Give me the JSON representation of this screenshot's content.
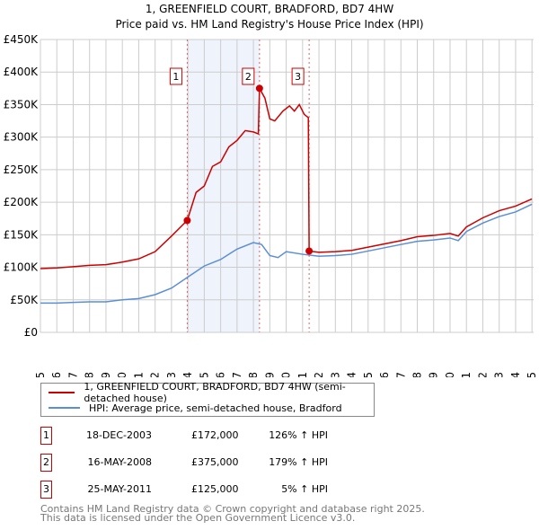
{
  "chart_data": {
    "type": "line",
    "title": "1, GREENFIELD COURT, BRADFORD, BD7 4HW",
    "subtitle": "Price paid vs. HM Land Registry's House Price Index (HPI)",
    "xlim": [
      1995,
      2025.1
    ],
    "ylim": [
      0,
      450000
    ],
    "yticks": [
      0,
      50000,
      100000,
      150000,
      200000,
      250000,
      300000,
      350000,
      400000,
      450000
    ],
    "ytick_labels": [
      "£0",
      "£50K",
      "£100K",
      "£150K",
      "£200K",
      "£250K",
      "£300K",
      "£350K",
      "£400K",
      "£450K"
    ],
    "xticks": [
      "1995",
      "1996",
      "1997",
      "1998",
      "1999",
      "2000",
      "2001",
      "2002",
      "2003",
      "2004",
      "2005",
      "2006",
      "2007",
      "2008",
      "2009",
      "2010",
      "2011",
      "2012",
      "2013",
      "2014",
      "2015",
      "2016",
      "2017",
      "2018",
      "2019",
      "2020",
      "2021",
      "2022",
      "2023",
      "2024",
      "2025"
    ],
    "grid": true,
    "series": [
      {
        "name": "1, GREENFIELD COURT, BRADFORD, BD7 4HW (semi-detached house)",
        "color": "#cc0000",
        "points": [
          [
            1995,
            98000
          ],
          [
            1996,
            99000
          ],
          [
            1997,
            101000
          ],
          [
            1998,
            103000
          ],
          [
            1999,
            104000
          ],
          [
            2000,
            108000
          ],
          [
            2001,
            113000
          ],
          [
            2002,
            124000
          ],
          [
            2003,
            148000
          ],
          [
            2003.96,
            172000
          ],
          [
            2004.5,
            215000
          ],
          [
            2005,
            225000
          ],
          [
            2005.5,
            255000
          ],
          [
            2006,
            262000
          ],
          [
            2006.5,
            285000
          ],
          [
            2007,
            295000
          ],
          [
            2007.5,
            310000
          ],
          [
            2008,
            308000
          ],
          [
            2008.3,
            305000
          ],
          [
            2008.37,
            375000
          ],
          [
            2008.7,
            360000
          ],
          [
            2009,
            328000
          ],
          [
            2009.3,
            325000
          ],
          [
            2009.8,
            340000
          ],
          [
            2010.2,
            348000
          ],
          [
            2010.5,
            340000
          ],
          [
            2010.8,
            350000
          ],
          [
            2011.1,
            335000
          ],
          [
            2011.35,
            330000
          ],
          [
            2011.4,
            125000
          ],
          [
            2012,
            123000
          ],
          [
            2013,
            124000
          ],
          [
            2014,
            126000
          ],
          [
            2015,
            131000
          ],
          [
            2016,
            136000
          ],
          [
            2017,
            141000
          ],
          [
            2018,
            147000
          ],
          [
            2019,
            149000
          ],
          [
            2020,
            152000
          ],
          [
            2020.5,
            148000
          ],
          [
            2021,
            162000
          ],
          [
            2022,
            176000
          ],
          [
            2023,
            187000
          ],
          [
            2024,
            194000
          ],
          [
            2025,
            205000
          ]
        ]
      },
      {
        "name": "HPI: Average price, semi-detached house, Bradford",
        "color": "#5b8fd4",
        "points": [
          [
            1995,
            45000
          ],
          [
            1996,
            45000
          ],
          [
            1997,
            46000
          ],
          [
            1998,
            47000
          ],
          [
            1999,
            47000
          ],
          [
            2000,
            50000
          ],
          [
            2001,
            52000
          ],
          [
            2002,
            58000
          ],
          [
            2003,
            68000
          ],
          [
            2004,
            85000
          ],
          [
            2005,
            102000
          ],
          [
            2006,
            112000
          ],
          [
            2007,
            128000
          ],
          [
            2008,
            138000
          ],
          [
            2008.5,
            135000
          ],
          [
            2009,
            118000
          ],
          [
            2009.5,
            115000
          ],
          [
            2010,
            124000
          ],
          [
            2011,
            120000
          ],
          [
            2012,
            117000
          ],
          [
            2013,
            118000
          ],
          [
            2014,
            120000
          ],
          [
            2015,
            125000
          ],
          [
            2016,
            130000
          ],
          [
            2017,
            135000
          ],
          [
            2018,
            140000
          ],
          [
            2019,
            142000
          ],
          [
            2020,
            145000
          ],
          [
            2020.5,
            141000
          ],
          [
            2021,
            155000
          ],
          [
            2022,
            168000
          ],
          [
            2023,
            178000
          ],
          [
            2024,
            185000
          ],
          [
            2025,
            197000
          ]
        ]
      }
    ],
    "sales": [
      {
        "label": "1",
        "x": 2003.96,
        "y": 172000
      },
      {
        "label": "2",
        "x": 2008.37,
        "y": 375000
      },
      {
        "label": "3",
        "x": 2011.4,
        "y": 125000
      }
    ]
  },
  "legend": [
    "1, GREENFIELD COURT, BRADFORD, BD7 4HW (semi-detached house)",
    "HPI: Average price, semi-detached house, Bradford"
  ],
  "table": [
    {
      "num": "1",
      "date": "18-DEC-2003",
      "price": "£172,000",
      "hpi": "126% ↑ HPI"
    },
    {
      "num": "2",
      "date": "16-MAY-2008",
      "price": "£375,000",
      "hpi": "179% ↑ HPI"
    },
    {
      "num": "3",
      "date": "25-MAY-2011",
      "price": "£125,000",
      "hpi": "5% ↑ HPI"
    }
  ],
  "footer": [
    "Contains HM Land Registry data © Crown copyright and database right 2025.",
    "This data is licensed under the Open Government Licence v3.0."
  ]
}
